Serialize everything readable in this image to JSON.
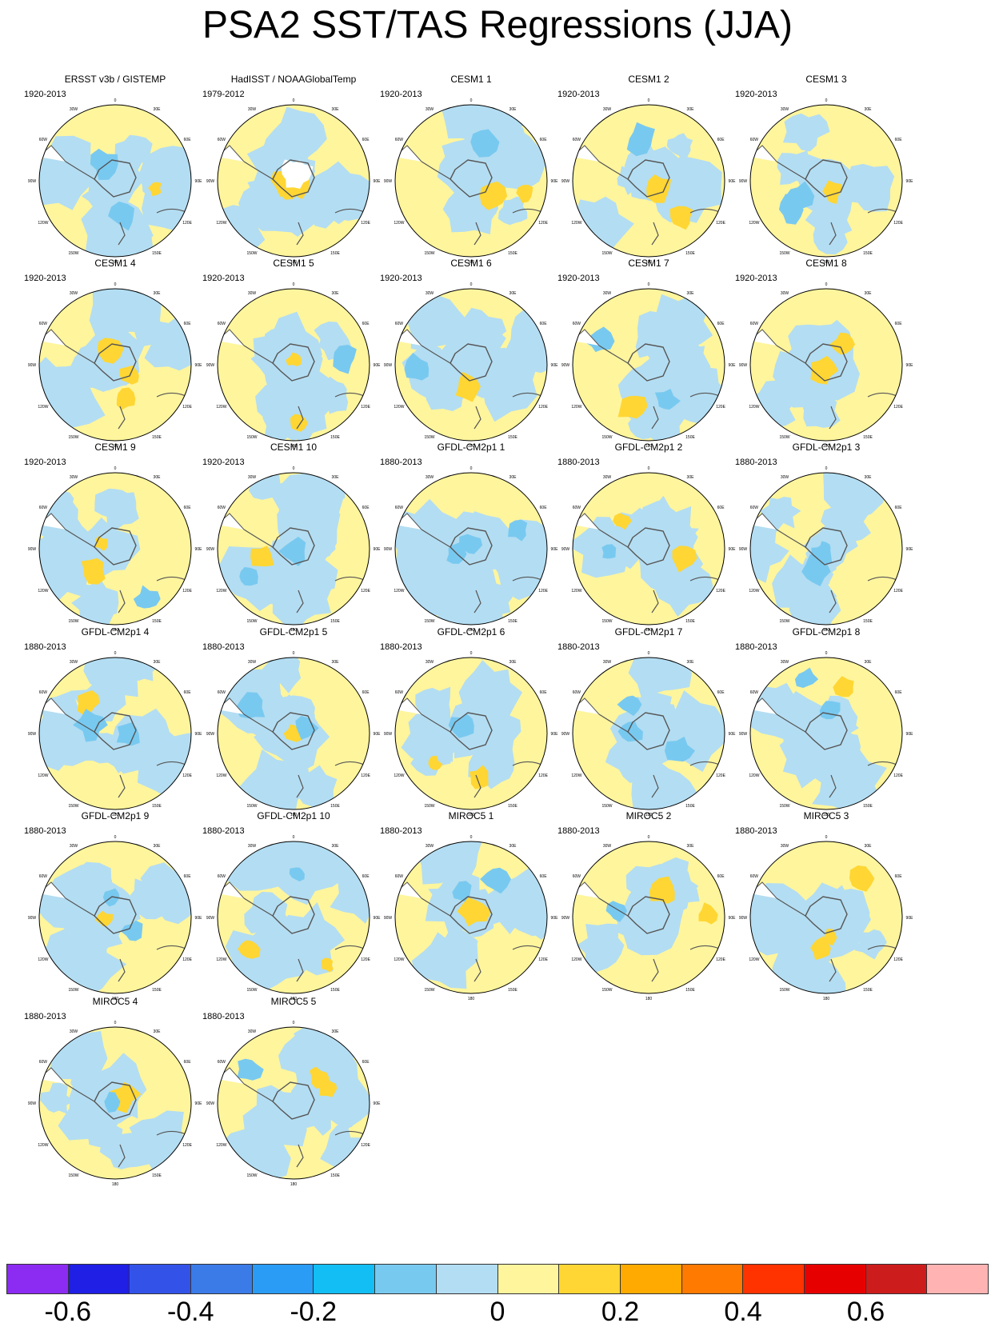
{
  "title": "PSA2 SST/TAS Regressions (JJA)",
  "colors": {
    "land": "#ffffff",
    "coast": "#555555",
    "background_field": "#fff59d"
  },
  "lon_labels": [
    "0",
    "30E",
    "60E",
    "90E",
    "120E",
    "150E",
    "180",
    "150W",
    "120W",
    "90W",
    "60W",
    "30W"
  ],
  "panels": [
    {
      "title": "ERSST v3b / GISTEMP",
      "period": "1920-2013"
    },
    {
      "title": "HadISST / NOAAGlobalTemp",
      "period": "1979-2012"
    },
    {
      "title": "CESM1 1",
      "period": "1920-2013"
    },
    {
      "title": "CESM1 2",
      "period": "1920-2013"
    },
    {
      "title": "CESM1 3",
      "period": "1920-2013"
    },
    {
      "title": "CESM1 4",
      "period": "1920-2013"
    },
    {
      "title": "CESM1 5",
      "period": "1920-2013"
    },
    {
      "title": "CESM1 6",
      "period": "1920-2013"
    },
    {
      "title": "CESM1 7",
      "period": "1920-2013"
    },
    {
      "title": "CESM1 8",
      "period": "1920-2013"
    },
    {
      "title": "CESM1 9",
      "period": "1920-2013"
    },
    {
      "title": "CESM1 10",
      "period": "1920-2013"
    },
    {
      "title": "GFDL-CM2p1 1",
      "period": "1880-2013"
    },
    {
      "title": "GFDL-CM2p1 2",
      "period": "1880-2013"
    },
    {
      "title": "GFDL-CM2p1 3",
      "period": "1880-2013"
    },
    {
      "title": "GFDL-CM2p1 4",
      "period": "1880-2013"
    },
    {
      "title": "GFDL-CM2p1 5",
      "period": "1880-2013"
    },
    {
      "title": "GFDL-CM2p1 6",
      "period": "1880-2013"
    },
    {
      "title": "GFDL-CM2p1 7",
      "period": "1880-2013"
    },
    {
      "title": "GFDL-CM2p1 8",
      "period": "1880-2013"
    },
    {
      "title": "GFDL-CM2p1 9",
      "period": "1880-2013"
    },
    {
      "title": "GFDL-CM2p1 10",
      "period": "1880-2013"
    },
    {
      "title": "MIROC5 1",
      "period": "1880-2013"
    },
    {
      "title": "MIROC5 2",
      "period": "1880-2013"
    },
    {
      "title": "MIROC5 3",
      "period": "1880-2013"
    },
    {
      "title": "MIROC5 4",
      "period": "1880-2013"
    },
    {
      "title": "MIROC5 5",
      "period": "1880-2013"
    }
  ],
  "colorbar": {
    "colors": [
      "#8c2cf2",
      "#1f1fe6",
      "#3353e8",
      "#3b7be8",
      "#2a9cf5",
      "#13bef5",
      "#78c9f0",
      "#b3ddf2",
      "#fff59d",
      "#ffd633",
      "#ffaa00",
      "#ff7a00",
      "#ff3300",
      "#e60000",
      "#cc1c1c",
      "#ffb3b3"
    ],
    "labels": [
      "-0.6",
      "-0.4",
      "-0.2",
      "0",
      "0.2",
      "0.4",
      "0.6"
    ],
    "label_boundaries": [
      1,
      3,
      5,
      8,
      10,
      12,
      14
    ]
  }
}
